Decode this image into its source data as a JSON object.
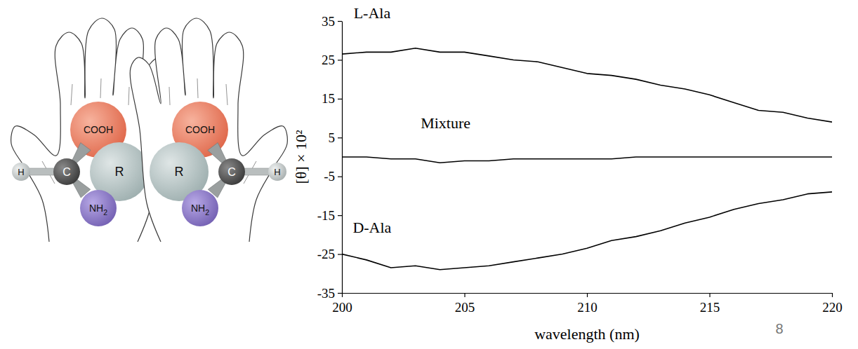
{
  "chart_data": {
    "type": "line",
    "x_label": "wavelength (nm)",
    "y_label": "[θ] × 10²",
    "x": [
      200,
      201,
      202,
      203,
      204,
      205,
      206,
      207,
      208,
      209,
      210,
      211,
      212,
      213,
      214,
      215,
      216,
      217,
      218,
      219,
      220
    ],
    "series": [
      {
        "name": "L-Ala",
        "color": "#000000",
        "values": [
          26.5,
          27,
          27,
          28,
          27,
          27,
          26,
          25,
          24.5,
          23,
          21.5,
          21,
          20,
          18.5,
          17.5,
          16,
          14,
          12,
          11.5,
          10,
          9
        ]
      },
      {
        "name": "Mixture",
        "color": "#000000",
        "values": [
          0,
          0,
          -0.5,
          -0.5,
          -1.5,
          -1,
          -1,
          -0.5,
          -0.5,
          -0.5,
          -0.5,
          -0.5,
          0,
          0,
          0,
          0,
          0,
          0,
          0,
          0,
          0
        ]
      },
      {
        "name": "D-Ala",
        "color": "#000000",
        "values": [
          -25,
          -26.5,
          -28.5,
          -28,
          -29,
          -28.5,
          -28,
          -27,
          -26,
          -25,
          -23.5,
          -21.5,
          -20.5,
          -19,
          -17,
          -15.5,
          -13.5,
          -12,
          -11,
          -9.5,
          -9
        ]
      }
    ],
    "xlim": [
      200,
      220
    ],
    "ylim": [
      -35,
      35
    ],
    "xticks": [
      200,
      205,
      210,
      215,
      220
    ],
    "yticks": [
      -35,
      -25,
      -15,
      -5,
      5,
      15,
      25,
      35
    ],
    "grid": false
  },
  "diagram": {
    "molecules": [
      {
        "atoms": [
          {
            "label": "COOH"
          },
          {
            "label": "R"
          },
          {
            "label": "C"
          },
          {
            "label": "H"
          },
          {
            "label": "NH2"
          }
        ]
      },
      {
        "atoms": [
          {
            "label": "COOH"
          },
          {
            "label": "R"
          },
          {
            "label": "C"
          },
          {
            "label": "H"
          },
          {
            "label": "NH2"
          }
        ]
      }
    ]
  },
  "slide_number": "8"
}
